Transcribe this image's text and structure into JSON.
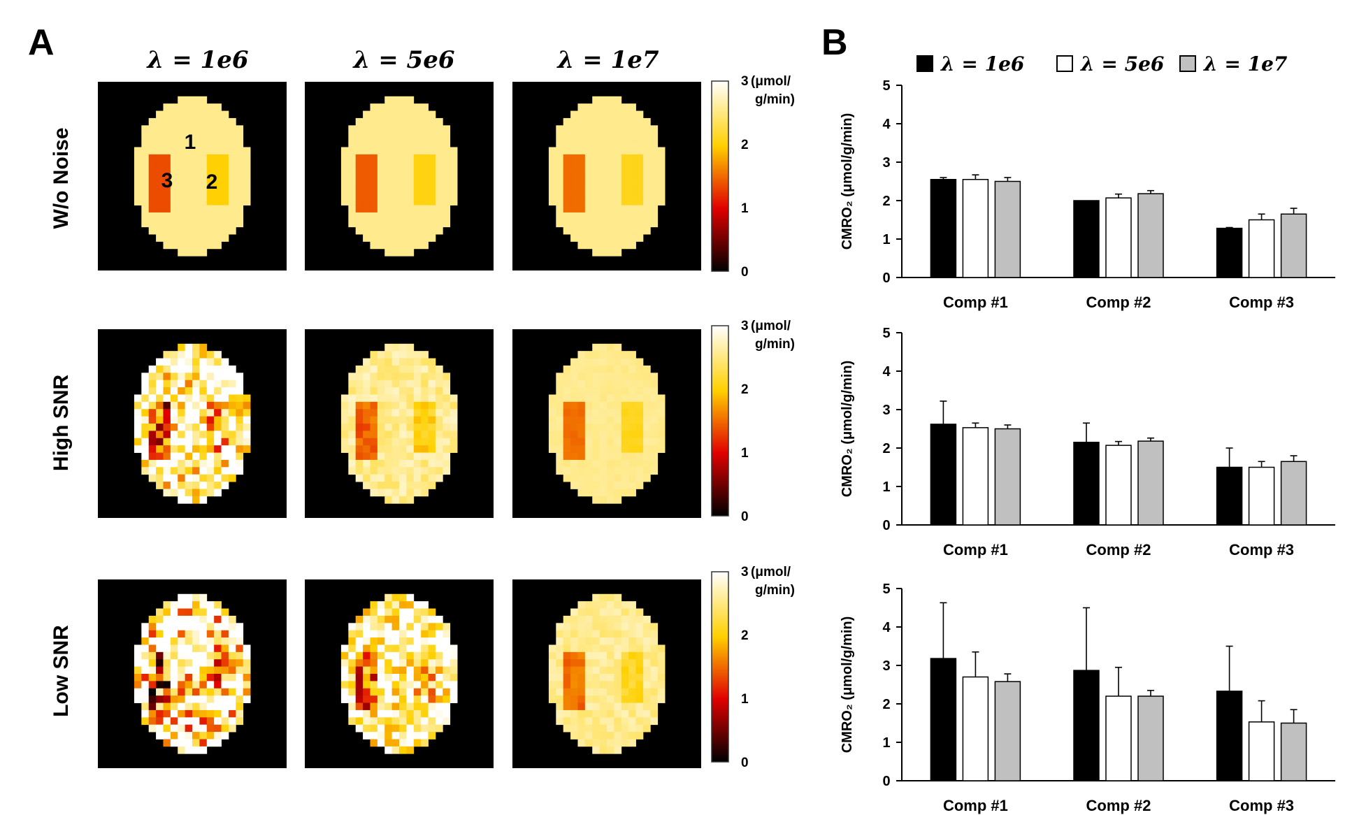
{
  "panel_a_label": "A",
  "panel_b_label": "B",
  "lambda_prefix": "λ = ",
  "lambda_values": [
    "1e6",
    "5e6",
    "1e7"
  ],
  "row_labels": [
    "W/o Noise",
    "High SNR",
    "Low SNR"
  ],
  "region_labels": [
    "1",
    "2",
    "3"
  ],
  "colorbar": {
    "unit_line1": "(μmol/",
    "unit_line2": "g/min)",
    "ticks": [
      "3",
      "2",
      "1",
      "0"
    ]
  },
  "colors": {
    "lambda_1e6": "#000000",
    "lambda_5e6": "#ffffff",
    "lambda_1e7": "#c0c0c0",
    "map_background": "#000000"
  },
  "chart_data": [
    {
      "type": "bar",
      "row": "W/o Noise",
      "categories": [
        "Comp #1",
        "Comp #2",
        "Comp #3"
      ],
      "ylabel": "CMRO₂ (μmol/g/min)",
      "ylim": [
        0,
        5
      ],
      "yticks": [
        "0",
        "1",
        "2",
        "3",
        "4",
        "5"
      ],
      "series": [
        {
          "name": "λ = 1e6",
          "values": [
            2.55,
            2.0,
            1.28
          ],
          "errors": [
            0.05,
            0.0,
            0.02
          ]
        },
        {
          "name": "λ = 5e6",
          "values": [
            2.55,
            2.07,
            1.5
          ],
          "errors": [
            0.12,
            0.1,
            0.15
          ]
        },
        {
          "name": "λ = 1e7",
          "values": [
            2.5,
            2.18,
            1.65
          ],
          "errors": [
            0.1,
            0.08,
            0.15
          ]
        }
      ]
    },
    {
      "type": "bar",
      "row": "High SNR",
      "categories": [
        "Comp #1",
        "Comp #2",
        "Comp #3"
      ],
      "ylabel": "CMRO₂ (μmol/g/min)",
      "ylim": [
        0,
        5
      ],
      "yticks": [
        "0",
        "1",
        "2",
        "3",
        "4",
        "5"
      ],
      "series": [
        {
          "name": "λ = 1e6",
          "values": [
            2.62,
            2.15,
            1.5
          ],
          "errors": [
            0.6,
            0.5,
            0.5
          ]
        },
        {
          "name": "λ = 5e6",
          "values": [
            2.53,
            2.07,
            1.5
          ],
          "errors": [
            0.12,
            0.1,
            0.15
          ]
        },
        {
          "name": "λ = 1e7",
          "values": [
            2.5,
            2.18,
            1.65
          ],
          "errors": [
            0.1,
            0.08,
            0.15
          ]
        }
      ]
    },
    {
      "type": "bar",
      "row": "Low SNR",
      "categories": [
        "Comp #1",
        "Comp #2",
        "Comp #3"
      ],
      "ylabel": "CMRO₂ (μmol/g/min)",
      "ylim": [
        0,
        5
      ],
      "yticks": [
        "0",
        "1",
        "2",
        "3",
        "4",
        "5"
      ],
      "series": [
        {
          "name": "λ = 1e6",
          "values": [
            3.18,
            2.87,
            2.33
          ],
          "errors": [
            1.45,
            1.63,
            1.17
          ]
        },
        {
          "name": "λ = 5e6",
          "values": [
            2.7,
            2.2,
            1.53
          ],
          "errors": [
            0.65,
            0.75,
            0.55
          ]
        },
        {
          "name": "λ = 1e7",
          "values": [
            2.58,
            2.2,
            1.5
          ],
          "errors": [
            0.2,
            0.15,
            0.35
          ]
        }
      ]
    }
  ]
}
